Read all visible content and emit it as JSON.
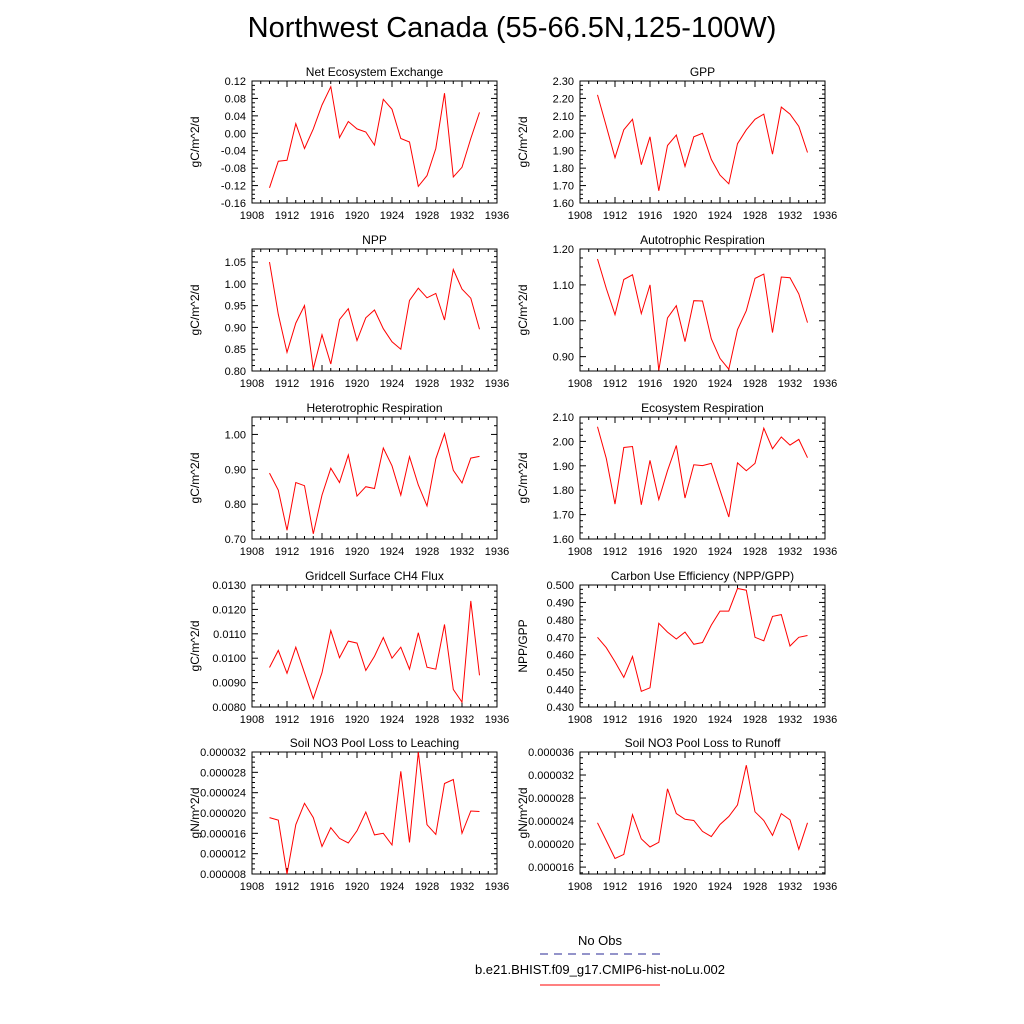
{
  "title": "Northwest Canada (55-66.5N,125-100W)",
  "legend": {
    "obs_label": "No Obs",
    "obs_color": "#5555aa",
    "model_label": "b.e21.BHIST.f09_g17.CMIP6-hist-noLu.002",
    "model_color": "#ff0000"
  },
  "chart_data": [
    {
      "type": "line",
      "title": "Net Ecosystem Exchange",
      "ylabel": "gC/m^2/d",
      "xlim": [
        1908,
        1936
      ],
      "xticks": [
        "1908",
        "1912",
        "1916",
        "1920",
        "1924",
        "1928",
        "1932",
        "1936"
      ],
      "ylim": [
        -0.16,
        0.12
      ],
      "yticks": [
        "-0.16",
        "-0.12",
        "-0.08",
        "-0.04",
        "0.00",
        "0.04",
        "0.08",
        "0.12"
      ],
      "x": [
        1910,
        1911,
        1912,
        1913,
        1914,
        1915,
        1916,
        1917,
        1918,
        1919,
        1920,
        1921,
        1922,
        1923,
        1924,
        1925,
        1926,
        1927,
        1928,
        1929,
        1930,
        1931,
        1932,
        1933,
        1934
      ],
      "values": [
        -0.125,
        -0.064,
        -0.062,
        0.022,
        -0.035,
        0.01,
        0.065,
        0.107,
        -0.01,
        0.027,
        0.01,
        0.003,
        -0.027,
        0.078,
        0.055,
        -0.012,
        -0.02,
        -0.122,
        -0.097,
        -0.035,
        0.092,
        -0.1,
        -0.078,
        -0.012,
        0.048
      ]
    },
    {
      "type": "line",
      "title": "GPP",
      "ylabel": "gC/m^2/d",
      "xlim": [
        1908,
        1936
      ],
      "xticks": [
        "1908",
        "1912",
        "1916",
        "1920",
        "1924",
        "1928",
        "1932",
        "1936"
      ],
      "ylim": [
        1.6,
        2.3
      ],
      "yticks": [
        "1.60",
        "1.70",
        "1.80",
        "1.90",
        "2.00",
        "2.10",
        "2.20",
        "2.30"
      ],
      "x": [
        1910,
        1911,
        1912,
        1913,
        1914,
        1915,
        1916,
        1917,
        1918,
        1919,
        1920,
        1921,
        1922,
        1923,
        1924,
        1925,
        1926,
        1927,
        1928,
        1929,
        1930,
        1931,
        1932,
        1933,
        1934
      ],
      "values": [
        2.22,
        2.04,
        1.86,
        2.02,
        2.08,
        1.82,
        1.98,
        1.67,
        1.93,
        1.99,
        1.81,
        1.98,
        2.0,
        1.85,
        1.76,
        1.71,
        1.94,
        2.02,
        2.08,
        2.11,
        1.88,
        2.15,
        2.11,
        2.04,
        1.89
      ]
    },
    {
      "type": "line",
      "title": "NPP",
      "ylabel": "gC/m^2/d",
      "xlim": [
        1908,
        1936
      ],
      "xticks": [
        "1908",
        "1912",
        "1916",
        "1920",
        "1924",
        "1928",
        "1932",
        "1936"
      ],
      "ylim": [
        0.8,
        1.08
      ],
      "yticks": [
        "0.80",
        "0.85",
        "0.90",
        "0.95",
        "1.00",
        "1.05"
      ],
      "x": [
        1910,
        1911,
        1912,
        1913,
        1914,
        1915,
        1916,
        1917,
        1918,
        1919,
        1920,
        1921,
        1922,
        1923,
        1924,
        1925,
        1926,
        1927,
        1928,
        1929,
        1930,
        1931,
        1932,
        1933,
        1934
      ],
      "values": [
        1.05,
        0.93,
        0.843,
        0.91,
        0.95,
        0.805,
        0.883,
        0.816,
        0.918,
        0.943,
        0.87,
        0.922,
        0.94,
        0.897,
        0.867,
        0.85,
        0.962,
        0.99,
        0.968,
        0.978,
        0.917,
        1.033,
        0.988,
        0.967,
        0.896
      ]
    },
    {
      "type": "line",
      "title": "Autotrophic Respiration",
      "ylabel": "gC/m^2/d",
      "xlim": [
        1908,
        1936
      ],
      "xticks": [
        "1908",
        "1912",
        "1916",
        "1920",
        "1924",
        "1928",
        "1932",
        "1936"
      ],
      "ylim": [
        0.86,
        1.2
      ],
      "yticks": [
        "0.90",
        "1.00",
        "1.10",
        "1.20"
      ],
      "x": [
        1910,
        1911,
        1912,
        1913,
        1914,
        1915,
        1916,
        1917,
        1918,
        1919,
        1920,
        1921,
        1922,
        1923,
        1924,
        1925,
        1926,
        1927,
        1928,
        1929,
        1930,
        1931,
        1932,
        1933,
        1934
      ],
      "values": [
        1.172,
        1.09,
        1.017,
        1.115,
        1.128,
        1.02,
        1.1,
        0.862,
        1.008,
        1.042,
        0.942,
        1.056,
        1.055,
        0.95,
        0.895,
        0.865,
        0.975,
        1.028,
        1.118,
        1.13,
        0.967,
        1.122,
        1.12,
        1.075,
        0.995
      ]
    },
    {
      "type": "line",
      "title": "Heterotrophic Respiration",
      "ylabel": "gC/m^2/d",
      "xlim": [
        1908,
        1936
      ],
      "xticks": [
        "1908",
        "1912",
        "1916",
        "1920",
        "1924",
        "1928",
        "1932",
        "1936"
      ],
      "ylim": [
        0.7,
        1.05
      ],
      "yticks": [
        "0.70",
        "0.80",
        "0.90",
        "1.00"
      ],
      "x": [
        1910,
        1911,
        1912,
        1913,
        1914,
        1915,
        1916,
        1917,
        1918,
        1919,
        1920,
        1921,
        1922,
        1923,
        1924,
        1925,
        1926,
        1927,
        1928,
        1929,
        1930,
        1931,
        1932,
        1933,
        1934
      ],
      "values": [
        0.889,
        0.84,
        0.725,
        0.862,
        0.853,
        0.715,
        0.826,
        0.903,
        0.862,
        0.941,
        0.823,
        0.85,
        0.845,
        0.961,
        0.91,
        0.826,
        0.936,
        0.855,
        0.795,
        0.93,
        1.002,
        0.897,
        0.861,
        0.932,
        0.937
      ]
    },
    {
      "type": "line",
      "title": "Ecosystem Respiration",
      "ylabel": "gC/m^2/d",
      "xlim": [
        1908,
        1936
      ],
      "xticks": [
        "1908",
        "1912",
        "1916",
        "1920",
        "1924",
        "1928",
        "1932",
        "1936"
      ],
      "ylim": [
        1.6,
        2.1
      ],
      "yticks": [
        "1.60",
        "1.70",
        "1.80",
        "1.90",
        "2.00",
        "2.10"
      ],
      "x": [
        1910,
        1911,
        1912,
        1913,
        1914,
        1915,
        1916,
        1917,
        1918,
        1919,
        1920,
        1921,
        1922,
        1923,
        1924,
        1925,
        1926,
        1927,
        1928,
        1929,
        1930,
        1931,
        1932,
        1933,
        1934
      ],
      "values": [
        2.06,
        1.93,
        1.743,
        1.975,
        1.979,
        1.74,
        1.922,
        1.762,
        1.88,
        1.983,
        1.768,
        1.904,
        1.901,
        1.91,
        1.8,
        1.69,
        1.912,
        1.88,
        1.91,
        2.054,
        1.97,
        2.018,
        1.985,
        2.008,
        1.933
      ]
    },
    {
      "type": "line",
      "title": "Gridcell Surface CH4 Flux",
      "ylabel": "gC/m^2/d",
      "xlim": [
        1908,
        1936
      ],
      "xticks": [
        "1908",
        "1912",
        "1916",
        "1920",
        "1924",
        "1928",
        "1932",
        "1936"
      ],
      "ylim": [
        0.008,
        0.013
      ],
      "yticks": [
        "0.0080",
        "0.0090",
        "0.0100",
        "0.0110",
        "0.0120",
        "0.0130"
      ],
      "x": [
        1910,
        1911,
        1912,
        1913,
        1914,
        1915,
        1916,
        1917,
        1918,
        1919,
        1920,
        1921,
        1922,
        1923,
        1924,
        1925,
        1926,
        1927,
        1928,
        1929,
        1930,
        1931,
        1932,
        1933,
        1934
      ],
      "values": [
        0.00962,
        0.01032,
        0.00938,
        0.01045,
        0.0094,
        0.00834,
        0.0094,
        0.01113,
        0.01002,
        0.0107,
        0.01062,
        0.0095,
        0.01008,
        0.01085,
        0.01,
        0.01045,
        0.00955,
        0.01104,
        0.00963,
        0.00955,
        0.01138,
        0.00872,
        0.0082,
        0.01235,
        0.0093
      ]
    },
    {
      "type": "line",
      "title": "Carbon Use Efficiency (NPP/GPP)",
      "ylabel": "NPP/GPP",
      "xlim": [
        1908,
        1936
      ],
      "xticks": [
        "1908",
        "1912",
        "1916",
        "1920",
        "1924",
        "1928",
        "1932",
        "1936"
      ],
      "ylim": [
        0.43,
        0.5
      ],
      "yticks": [
        "0.430",
        "0.440",
        "0.450",
        "0.460",
        "0.470",
        "0.480",
        "0.490",
        "0.500"
      ],
      "x": [
        1910,
        1911,
        1912,
        1913,
        1914,
        1915,
        1916,
        1917,
        1918,
        1919,
        1920,
        1921,
        1922,
        1923,
        1924,
        1925,
        1926,
        1927,
        1928,
        1929,
        1930,
        1931,
        1932,
        1933,
        1934
      ],
      "values": [
        0.47,
        0.464,
        0.456,
        0.447,
        0.459,
        0.439,
        0.441,
        0.478,
        0.473,
        0.469,
        0.473,
        0.466,
        0.467,
        0.477,
        0.485,
        0.485,
        0.498,
        0.497,
        0.47,
        0.468,
        0.482,
        0.483,
        0.465,
        0.47,
        0.471
      ]
    },
    {
      "type": "line",
      "title": "Soil NO3 Pool Loss to Leaching",
      "ylabel": "gN/m^2/d",
      "xlim": [
        1908,
        1936
      ],
      "xticks": [
        "1908",
        "1912",
        "1916",
        "1920",
        "1924",
        "1928",
        "1932",
        "1936"
      ],
      "ylim": [
        8e-06,
        3.2e-05
      ],
      "yticks": [
        "0.000008",
        "0.000012",
        "0.000016",
        "0.000020",
        "0.000024",
        "0.000028",
        "0.000032"
      ],
      "x": [
        1910,
        1911,
        1912,
        1913,
        1914,
        1915,
        1916,
        1917,
        1918,
        1919,
        1920,
        1921,
        1922,
        1923,
        1924,
        1925,
        1926,
        1927,
        1928,
        1929,
        1930,
        1931,
        1932,
        1933,
        1934
      ],
      "values": [
        1.91e-05,
        1.86e-05,
        8e-06,
        1.77e-05,
        2.19e-05,
        1.91e-05,
        1.34e-05,
        1.71e-05,
        1.5e-05,
        1.41e-05,
        1.65e-05,
        2.02e-05,
        1.57e-05,
        1.6e-05,
        1.37e-05,
        2.82e-05,
        1.42e-05,
        3.2e-05,
        1.77e-05,
        1.58e-05,
        2.58e-05,
        2.66e-05,
        1.6e-05,
        2.04e-05,
        2.03e-05
      ]
    },
    {
      "type": "line",
      "title": "Soil NO3 Pool Loss to Runoff",
      "ylabel": "gN/m^2/d",
      "xlim": [
        1908,
        1936
      ],
      "xticks": [
        "1908",
        "1912",
        "1916",
        "1920",
        "1924",
        "1928",
        "1932",
        "1936"
      ],
      "ylim": [
        1.48e-05,
        3.6e-05
      ],
      "yticks": [
        "0.000016",
        "0.000020",
        "0.000024",
        "0.000028",
        "0.000032",
        "0.000036"
      ],
      "x": [
        1910,
        1911,
        1912,
        1913,
        1914,
        1915,
        1916,
        1917,
        1918,
        1919,
        1920,
        1921,
        1922,
        1923,
        1924,
        1925,
        1926,
        1927,
        1928,
        1929,
        1930,
        1931,
        1932,
        1933,
        1934
      ],
      "values": [
        2.37e-05,
        2.06e-05,
        1.75e-05,
        1.82e-05,
        2.51e-05,
        2.09e-05,
        1.95e-05,
        2.03e-05,
        2.96e-05,
        2.53e-05,
        2.43e-05,
        2.41e-05,
        2.22e-05,
        2.13e-05,
        2.34e-05,
        2.48e-05,
        2.68e-05,
        3.37e-05,
        2.56e-05,
        2.41e-05,
        2.15e-05,
        2.53e-05,
        2.42e-05,
        1.91e-05,
        2.37e-05
      ]
    }
  ]
}
